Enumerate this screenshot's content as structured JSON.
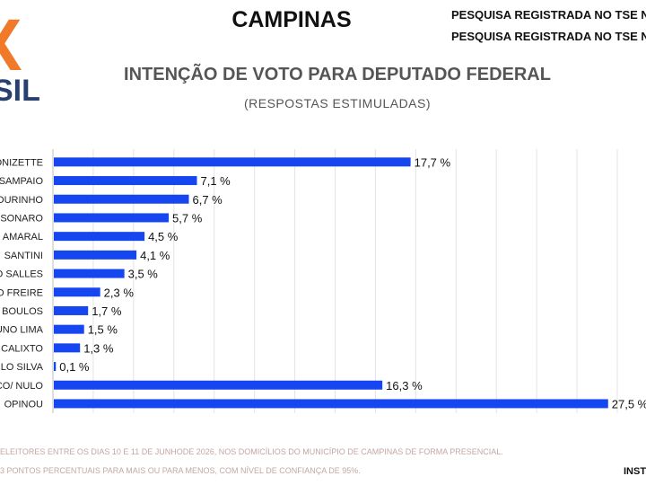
{
  "header": {
    "city": "CAMPINAS",
    "registration_1": "PESQUISA REGISTRADA NO TSE N",
    "registration_2": "PESQUISA REGISTRADA NO TSE N",
    "title": "INTENÇÃO DE VOTO PARA DEPUTADO FEDERAL",
    "subtitle": "(RESPOSTAS ESTIMULADAS)"
  },
  "logo": {
    "letter": "X",
    "word": "SIL",
    "colors": {
      "x": "#f07a2a",
      "word": "#27406e"
    }
  },
  "chart_data": {
    "type": "bar",
    "orientation": "horizontal",
    "categories": [
      "ONIZETTE",
      "SAMPAIO",
      "OURINHO",
      "SONARO",
      "AMARAL",
      "SANTINI",
      "O SALLES",
      "O FREIRE",
      "BOULOS",
      "UNO LIMA",
      "CALIXTO",
      "LO SILVA",
      "CO/ NULO",
      "OPINOU"
    ],
    "values": [
      17.7,
      7.1,
      6.7,
      5.7,
      4.5,
      4.1,
      3.5,
      2.3,
      1.7,
      1.5,
      1.3,
      0.1,
      16.3,
      27.5
    ],
    "value_labels": [
      "17,7 %",
      "7,1 %",
      "6,7 %",
      "5,7 %",
      "4,5 %",
      "4,1 %",
      "3,5 %",
      "2,3 %",
      "1,7 %",
      "1,5 %",
      "1,3 %",
      "0,1 %",
      "16,3 %",
      "27,5 %"
    ],
    "xticks": [
      0,
      2,
      4,
      6,
      8,
      10,
      12,
      14,
      16,
      18,
      20,
      22,
      24,
      26,
      28
    ],
    "xlim": [
      0,
      28
    ],
    "grid": true,
    "bar_color": "#1546f0",
    "grid_color": "#e3e3e3"
  },
  "footer": {
    "line1": "ELEITORES ENTRE OS DIAS 10 E 11 DE JUNHODE 2026, NOS DOMICÍLIOS DO MUNICÍPIO DE CAMPINAS DE FORMA PRESENCIAL.",
    "line2": "3 PONTOS PERCENTUAIS PARA MAIS OU PARA MENOS, COM NÍVEL DE CONFIANÇA DE 95%.",
    "institute": "INST"
  }
}
